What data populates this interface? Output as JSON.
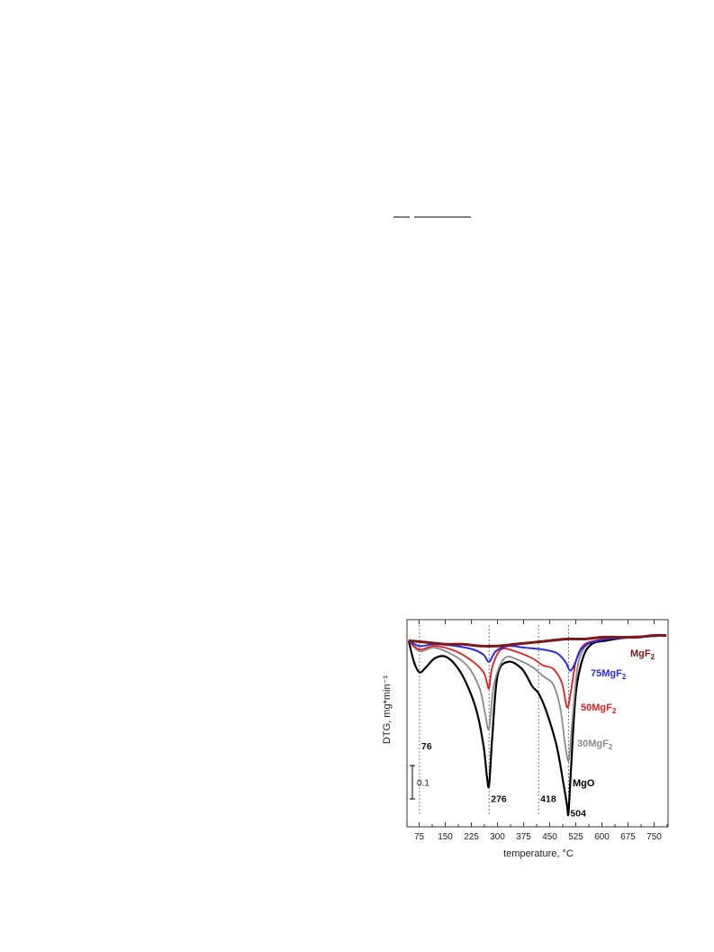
{
  "chart_data": {
    "type": "line",
    "xlabel": "temperature, °C",
    "ylabel": "DTG, mg*min⁻¹",
    "xlim": [
      40,
      790
    ],
    "ylim": [
      -1.06,
      0.12
    ],
    "x_ticks": [
      75,
      150,
      225,
      300,
      375,
      450,
      525,
      600,
      675,
      750
    ],
    "grid": false,
    "scale_bar": {
      "value": 0.1,
      "label": "0.1"
    },
    "annotations": [
      {
        "label": "76",
        "x": 76,
        "y": -0.62
      },
      {
        "label": "276",
        "x": 276,
        "y": -0.92
      },
      {
        "label": "418",
        "x": 418,
        "y": -0.92
      },
      {
        "label": "504",
        "x": 504,
        "y": -1.0
      }
    ],
    "reference_lines_x": [
      76,
      276,
      418,
      504
    ],
    "series": [
      {
        "name": "MgF₂",
        "label_main": "MgF",
        "label_sub": "2",
        "color": "#7a1a1a",
        "x": [
          45,
          100,
          150,
          200,
          250,
          300,
          350,
          400,
          450,
          500,
          550,
          600,
          650,
          700,
          750,
          785
        ],
        "y": [
          0.0,
          -0.01,
          -0.02,
          -0.02,
          -0.03,
          -0.03,
          -0.02,
          -0.01,
          0.0,
          0.01,
          0.01,
          0.02,
          0.02,
          0.02,
          0.03,
          0.03
        ]
      },
      {
        "name": "75MgF₂",
        "label_main": "75MgF",
        "label_sub": "2",
        "color": "#2a2ae0",
        "x": [
          45,
          76,
          120,
          180,
          230,
          260,
          276,
          295,
          330,
          380,
          430,
          470,
          495,
          508,
          520,
          540,
          570,
          620,
          700,
          785
        ],
        "y": [
          0.0,
          -0.03,
          -0.02,
          -0.03,
          -0.05,
          -0.08,
          -0.12,
          -0.06,
          -0.03,
          -0.04,
          -0.05,
          -0.07,
          -0.12,
          -0.17,
          -0.14,
          -0.05,
          -0.01,
          0.01,
          0.02,
          0.03
        ]
      },
      {
        "name": "50MgF₂",
        "label_main": "50MgF",
        "label_sub": "2",
        "color": "#e02020",
        "x": [
          45,
          76,
          120,
          180,
          230,
          260,
          270,
          276,
          285,
          310,
          350,
          400,
          430,
          460,
          485,
          500,
          510,
          525,
          545,
          580,
          650,
          785
        ],
        "y": [
          0.0,
          -0.05,
          -0.03,
          -0.06,
          -0.12,
          -0.18,
          -0.24,
          -0.27,
          -0.15,
          -0.05,
          -0.06,
          -0.1,
          -0.14,
          -0.16,
          -0.24,
          -0.38,
          -0.3,
          -0.12,
          -0.03,
          0.0,
          0.02,
          0.03
        ]
      },
      {
        "name": "30MgF₂",
        "label_main": "30MgF",
        "label_sub": "2",
        "color": "#8a8a8a",
        "x": [
          45,
          76,
          120,
          180,
          220,
          250,
          265,
          276,
          290,
          320,
          360,
          400,
          430,
          460,
          480,
          495,
          505,
          515,
          530,
          550,
          580,
          650,
          785
        ],
        "y": [
          0.0,
          -0.06,
          -0.04,
          -0.09,
          -0.16,
          -0.28,
          -0.42,
          -0.5,
          -0.25,
          -0.1,
          -0.11,
          -0.15,
          -0.2,
          -0.25,
          -0.38,
          -0.6,
          -0.68,
          -0.45,
          -0.15,
          -0.04,
          0.0,
          0.02,
          0.03
        ]
      },
      {
        "name": "MgO",
        "label_main": "MgO",
        "label_sub": "",
        "color": "#000000",
        "x": [
          45,
          60,
          76,
          95,
          120,
          150,
          180,
          210,
          240,
          260,
          270,
          276,
          285,
          300,
          330,
          370,
          400,
          418,
          440,
          470,
          490,
          500,
          504,
          512,
          525,
          545,
          570,
          610,
          680,
          785
        ],
        "y": [
          0.0,
          -0.12,
          -0.18,
          -0.15,
          -0.1,
          -0.09,
          -0.14,
          -0.24,
          -0.4,
          -0.6,
          -0.78,
          -0.82,
          -0.55,
          -0.2,
          -0.12,
          -0.16,
          -0.26,
          -0.3,
          -0.4,
          -0.6,
          -0.82,
          -0.94,
          -0.98,
          -0.7,
          -0.3,
          -0.1,
          -0.02,
          0.0,
          0.02,
          0.03
        ]
      }
    ]
  }
}
